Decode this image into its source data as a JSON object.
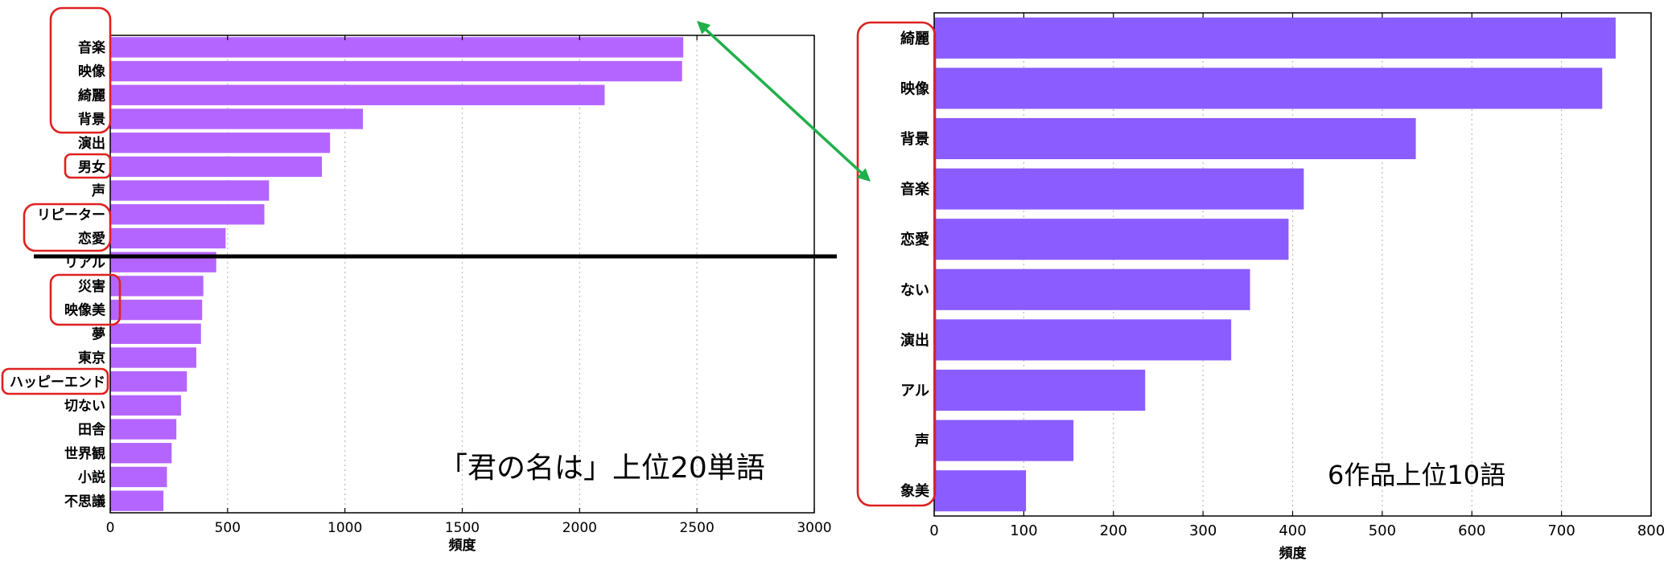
{
  "colors": {
    "left_bar": "#b565ff",
    "right_bar": "#8b5cff",
    "highlight": "#e02020",
    "arrow": "#1fb04a",
    "divider": "#000000",
    "grid": "#bbbbbb"
  },
  "captions": {
    "left": "「君の名は」上位20単語",
    "right": "6作品上位10語"
  },
  "chart_data": [
    {
      "type": "bar",
      "orientation": "horizontal",
      "categories": [
        "音楽",
        "映像",
        "綺麗",
        "背景",
        "演出",
        "男女",
        "声",
        "リピーター",
        "恋愛",
        "リアル",
        "災害",
        "映像美",
        "夢",
        "東京",
        "ハッピーエンド",
        "切ない",
        "田舎",
        "世界観",
        "小説",
        "不思議"
      ],
      "values": [
        2440,
        2435,
        2105,
        1075,
        935,
        900,
        675,
        655,
        490,
        450,
        395,
        390,
        385,
        365,
        325,
        300,
        280,
        260,
        240,
        225
      ],
      "xlabel": "頻度",
      "xlim": [
        0,
        3000
      ],
      "xticks": [
        0,
        500,
        1000,
        1500,
        2000,
        2500,
        3000
      ],
      "grid": "vertical-dotted"
    },
    {
      "type": "bar",
      "orientation": "horizontal",
      "categories": [
        "綺麗",
        "映像",
        "背景",
        "音楽",
        "恋愛",
        "ない",
        "演出",
        "アル",
        "声",
        "象美"
      ],
      "values": [
        760,
        745,
        537,
        412,
        395,
        352,
        331,
        235,
        155,
        102
      ],
      "xlabel": "頻度",
      "xlim": [
        0,
        800
      ],
      "xticks": [
        0,
        100,
        200,
        300,
        400,
        500,
        600,
        700,
        800
      ],
      "grid": "vertical-dotted"
    }
  ]
}
